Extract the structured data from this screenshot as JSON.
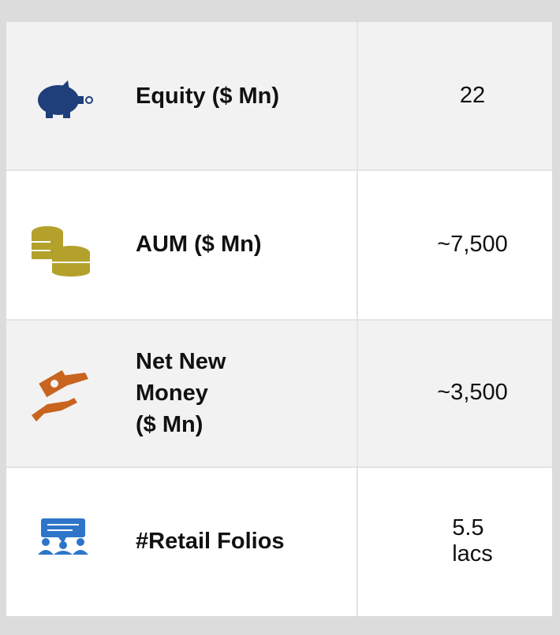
{
  "table": {
    "rows": [
      {
        "label": [
          "Equity ($ Mn)"
        ],
        "value": "22"
      },
      {
        "label": [
          "AUM ($ Mn)"
        ],
        "value": "~7,500"
      },
      {
        "label": [
          "Net New",
          "Money",
          "($ Mn)"
        ],
        "value": "~3,500"
      },
      {
        "label": [
          "#Retail Folios"
        ],
        "value": "5.5 lacs"
      }
    ]
  }
}
